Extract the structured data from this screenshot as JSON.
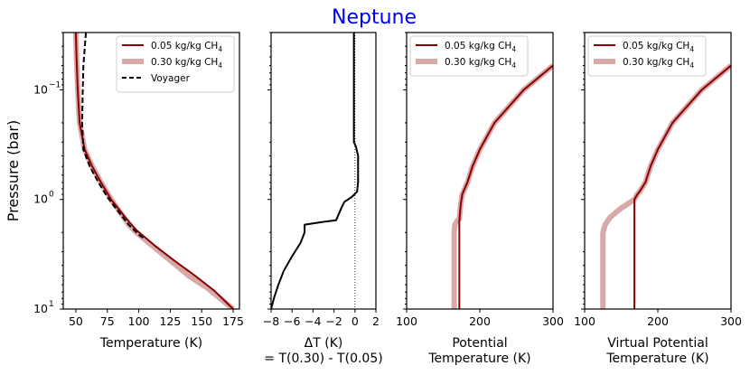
{
  "suptitle": "Neptune",
  "ylabel": "Pressure (bar)",
  "colors": {
    "thin": "#8b0000",
    "thick": "#d9a8a8",
    "voyager": "#000000",
    "title": "#0000ff"
  },
  "yaxis": {
    "scale": "log",
    "ylim": [
      10,
      0.03
    ],
    "ticks": [
      {
        "value": 0.1,
        "base": "10",
        "exp": "−1"
      },
      {
        "value": 1,
        "base": "10",
        "exp": "0"
      },
      {
        "value": 10,
        "base": "10",
        "exp": "1"
      }
    ]
  },
  "chart_data": [
    {
      "type": "line",
      "id": "temp",
      "xlabel": "Temperature (K)",
      "xlim": [
        40,
        180
      ],
      "xticks": [
        50,
        75,
        100,
        125,
        150,
        175
      ],
      "legend": {
        "placement": "top-right",
        "entries": [
          {
            "key": "thin",
            "text": "0.05 kg/kg CH",
            "sub": "4"
          },
          {
            "key": "thick",
            "text": "0.30 kg/kg CH",
            "sub": "4"
          },
          {
            "key": "voyager",
            "text": "Voyager",
            "sub": ""
          }
        ]
      },
      "series": [
        {
          "name": "0.30 kg/kg CH4",
          "style": "thick",
          "points": [
            [
              50,
              0.03
            ],
            [
              50.5,
              0.05
            ],
            [
              51.5,
              0.1
            ],
            [
              53,
              0.2
            ],
            [
              57,
              0.35
            ],
            [
              63,
              0.5
            ],
            [
              70,
              0.7
            ],
            [
              78,
              1.0
            ],
            [
              87,
              1.4
            ],
            [
              92,
              1.7
            ],
            [
              98,
              2.0
            ],
            [
              110,
              2.6
            ],
            [
              125,
              3.6
            ],
            [
              140,
              5.0
            ],
            [
              155,
              6.5
            ],
            [
              170,
              9.0
            ],
            [
              175,
              10
            ]
          ]
        },
        {
          "name": "0.05 kg/kg CH4",
          "style": "thin",
          "points": [
            [
              50,
              0.03
            ],
            [
              50.5,
              0.05
            ],
            [
              51.5,
              0.1
            ],
            [
              53,
              0.2
            ],
            [
              57,
              0.35
            ],
            [
              63,
              0.5
            ],
            [
              70,
              0.7
            ],
            [
              78,
              1.0
            ],
            [
              88,
              1.4
            ],
            [
              98,
              1.9
            ],
            [
              112,
              2.6
            ],
            [
              128,
              3.6
            ],
            [
              145,
              5.0
            ],
            [
              160,
              6.8
            ],
            [
              175,
              10
            ]
          ]
        },
        {
          "name": "Voyager",
          "style": "voyager",
          "points": [
            [
              58,
              0.03
            ],
            [
              56,
              0.06
            ],
            [
              55.5,
              0.1
            ],
            [
              55,
              0.2
            ],
            [
              56,
              0.35
            ],
            [
              61,
              0.5
            ],
            [
              68,
              0.7
            ],
            [
              75,
              0.95
            ],
            [
              84,
              1.3
            ],
            [
              92,
              1.7
            ],
            [
              100,
              2.1
            ],
            [
              105,
              2.3
            ]
          ]
        }
      ]
    },
    {
      "type": "line",
      "id": "dt",
      "xlabel": "ΔT (K)",
      "xlabel2": "= T(0.30) - T(0.05)",
      "xlim": [
        -8,
        2
      ],
      "xticks": [
        {
          "value": -8,
          "label": "−8"
        },
        {
          "value": -6,
          "label": "−6"
        },
        {
          "value": -4,
          "label": "−4"
        },
        {
          "value": -2,
          "label": "−2"
        },
        {
          "value": 0,
          "label": "0"
        },
        {
          "value": 2,
          "label": "2"
        }
      ],
      "reference_line": 0,
      "series": [
        {
          "name": "ΔT",
          "style": "voyager",
          "points": [
            [
              -0.1,
              0.03
            ],
            [
              -0.1,
              0.3
            ],
            [
              0.1,
              0.33
            ],
            [
              0.3,
              0.4
            ],
            [
              0.3,
              0.7
            ],
            [
              0.2,
              0.85
            ],
            [
              -0.3,
              0.95
            ],
            [
              -1.0,
              1.05
            ],
            [
              -1.3,
              1.2
            ],
            [
              -1.8,
              1.55
            ],
            [
              -3.0,
              1.6
            ],
            [
              -4.8,
              1.7
            ],
            [
              -4.8,
              2.0
            ],
            [
              -5.2,
              2.5
            ],
            [
              -6.0,
              3.3
            ],
            [
              -6.8,
              4.5
            ],
            [
              -7.3,
              6.0
            ],
            [
              -7.7,
              7.8
            ],
            [
              -8.0,
              10
            ]
          ]
        }
      ]
    },
    {
      "type": "line",
      "id": "pot",
      "xlabel": "Potential",
      "xlabel2": "Temperature (K)",
      "xlim": [
        100,
        300
      ],
      "xticks": [
        100,
        200,
        300
      ],
      "legend": {
        "placement": "top-left",
        "entries": [
          {
            "key": "thin",
            "text": "0.05 kg/kg CH",
            "sub": "4"
          },
          {
            "key": "thick",
            "text": "0.30 kg/kg CH",
            "sub": "4"
          }
        ]
      },
      "series": [
        {
          "name": "0.30 kg/kg CH4",
          "style": "thick",
          "points": [
            [
              300,
              0.06
            ],
            [
              260,
              0.1
            ],
            [
              220,
              0.2
            ],
            [
              200,
              0.35
            ],
            [
              190,
              0.5
            ],
            [
              183,
              0.7
            ],
            [
              176,
              0.9
            ],
            [
              174,
              1.1
            ],
            [
              172,
              1.5
            ],
            [
              168,
              1.6
            ],
            [
              166,
              1.7
            ],
            [
              165,
              2.0
            ],
            [
              165,
              10
            ]
          ]
        },
        {
          "name": "0.05 kg/kg CH4",
          "style": "thin",
          "points": [
            [
              300,
              0.06
            ],
            [
              260,
              0.1
            ],
            [
              220,
              0.2
            ],
            [
              200,
              0.35
            ],
            [
              190,
              0.5
            ],
            [
              183,
              0.7
            ],
            [
              176,
              0.9
            ],
            [
              174,
              1.1
            ],
            [
              173,
              1.3
            ],
            [
              172,
              1.6
            ],
            [
              172,
              10
            ]
          ]
        }
      ]
    },
    {
      "type": "line",
      "id": "vpot",
      "xlabel": "Virtual Potential",
      "xlabel2": "Temperature (K)",
      "xlim": [
        100,
        300
      ],
      "xticks": [
        100,
        200,
        300
      ],
      "legend": {
        "placement": "top-left",
        "entries": [
          {
            "key": "thin",
            "text": "0.05 kg/kg CH",
            "sub": "4"
          },
          {
            "key": "thick",
            "text": "0.30 kg/kg CH",
            "sub": "4"
          }
        ]
      },
      "series": [
        {
          "name": "0.30 kg/kg CH4",
          "style": "thick",
          "points": [
            [
              300,
              0.06
            ],
            [
              260,
              0.1
            ],
            [
              220,
              0.2
            ],
            [
              200,
              0.35
            ],
            [
              190,
              0.5
            ],
            [
              183,
              0.7
            ],
            [
              175,
              0.85
            ],
            [
              172,
              0.9
            ],
            [
              168,
              1.0
            ],
            [
              150,
              1.2
            ],
            [
              135,
              1.45
            ],
            [
              128,
              1.7
            ],
            [
              126,
              1.9
            ],
            [
              125,
              2.0
            ],
            [
              125,
              10
            ]
          ]
        },
        {
          "name": "0.05 kg/kg CH4",
          "style": "thin",
          "points": [
            [
              300,
              0.06
            ],
            [
              260,
              0.1
            ],
            [
              220,
              0.2
            ],
            [
              200,
              0.35
            ],
            [
              190,
              0.5
            ],
            [
              183,
              0.7
            ],
            [
              175,
              0.85
            ],
            [
              172,
              0.9
            ],
            [
              168,
              1.0
            ],
            [
              168,
              10
            ]
          ]
        }
      ]
    }
  ]
}
